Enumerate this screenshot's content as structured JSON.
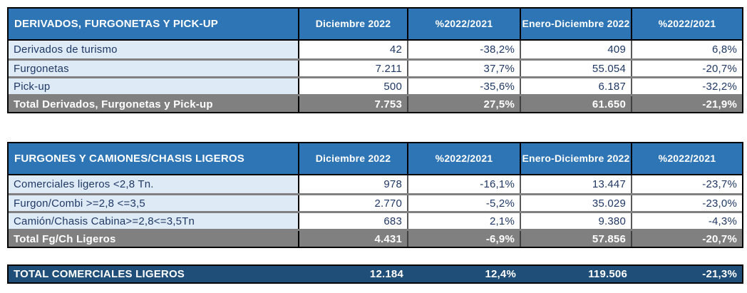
{
  "palette": {
    "header_blue": "#2E75B6",
    "row_light_blue": "#DEEBF7",
    "total_gray": "#808080",
    "grand_total_navy": "#1F4E79",
    "text_navy": "#1F3864"
  },
  "columns": [
    "Diciembre 2022",
    "%2022/2021",
    "Enero-Diciembre 2022",
    "%2022/2021"
  ],
  "tables": [
    {
      "title": "DERIVADOS, FURGONETAS Y PICK-UP",
      "rows": [
        {
          "label": "Derivados de turismo",
          "values": [
            "42",
            "-38,2%",
            "409",
            "6,8%"
          ]
        },
        {
          "label": "Furgonetas",
          "values": [
            "7.211",
            "37,7%",
            "55.054",
            "-20,7%"
          ]
        },
        {
          "label": "Pick-up",
          "values": [
            "500",
            "-35,6%",
            "6.187",
            "-32,2%"
          ]
        }
      ],
      "total": {
        "label": "Total Derivados, Furgonetas y Pick-up",
        "values": [
          "7.753",
          "27,5%",
          "61.650",
          "-21,9%"
        ]
      }
    },
    {
      "title": "FURGONES Y CAMIONES/CHASIS LIGEROS",
      "rows": [
        {
          "label": "Comerciales ligeros <2,8 Tn.",
          "values": [
            "978",
            "-16,1%",
            "13.447",
            "-23,7%"
          ]
        },
        {
          "label": "Furgon/Combi >=2,8 <=3,5",
          "values": [
            "2.770",
            "-5,2%",
            "35.029",
            "-23,0%"
          ]
        },
        {
          "label": "Camión/Chasis Cabina>=2,8<=3,5Tn",
          "values": [
            "683",
            "2,1%",
            "9.380",
            "-4,3%"
          ]
        }
      ],
      "total": {
        "label": "Total Fg/Ch Ligeros",
        "values": [
          "4.431",
          "-6,9%",
          "57.856",
          "-20,7%"
        ]
      }
    }
  ],
  "grand_total": {
    "label": "TOTAL COMERCIALES LIGEROS",
    "values": [
      "12.184",
      "12,4%",
      "119.506",
      "-21,3%"
    ]
  }
}
